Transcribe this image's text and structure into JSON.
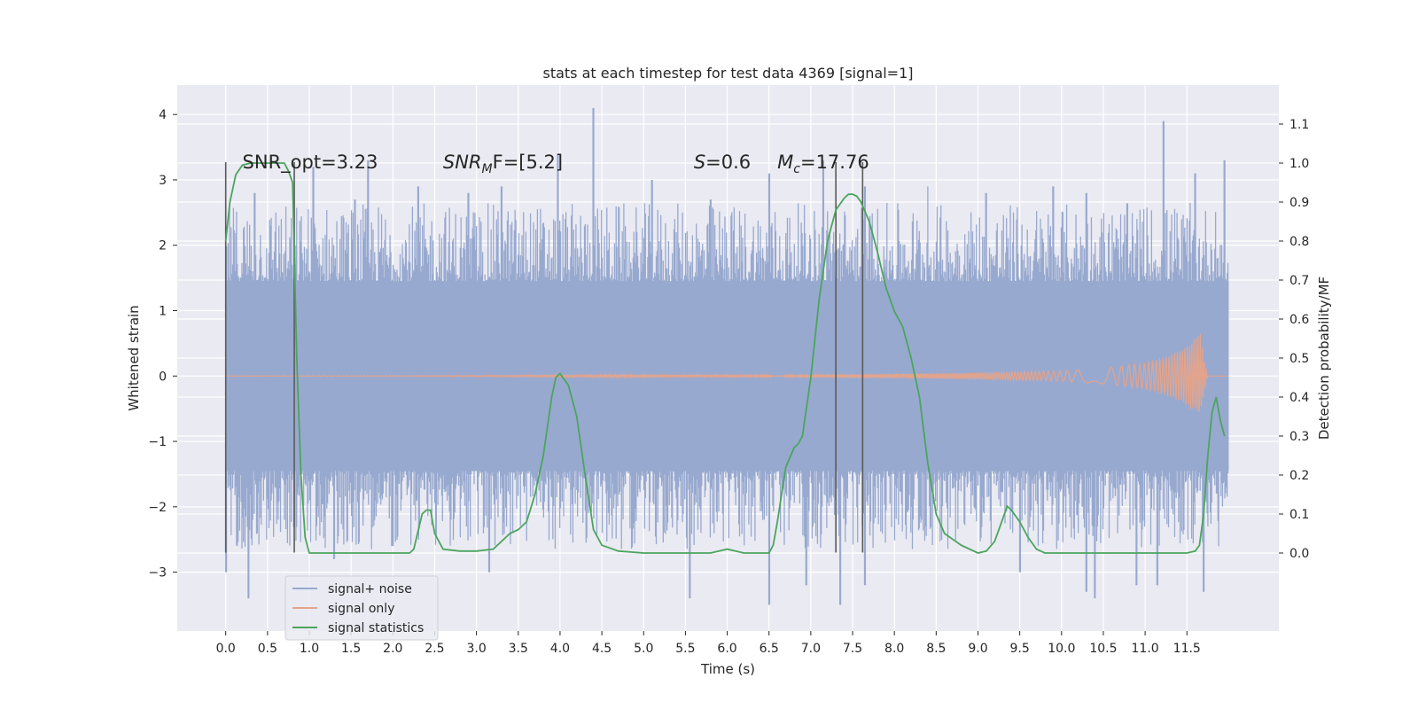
{
  "chart_data": {
    "type": "line",
    "title": "stats at each timestep for test data 4369 [signal=1]",
    "xlabel": "Time (s)",
    "ylabel": "Whitened strain",
    "y2label": "Detection probability/MF",
    "xlim": [
      -0.58,
      12.6
    ],
    "ylim": [
      -3.9,
      4.45
    ],
    "y2lim": [
      -0.2,
      1.2
    ],
    "xticks": [
      0.0,
      0.5,
      1.0,
      1.5,
      2.0,
      2.5,
      3.0,
      3.5,
      4.0,
      4.5,
      5.0,
      5.5,
      6.0,
      6.5,
      7.0,
      7.5,
      8.0,
      8.5,
      9.0,
      9.5,
      10.0,
      10.5,
      11.0,
      11.5
    ],
    "xtick_labels": [
      "0.0",
      "0.5",
      "1.0",
      "1.5",
      "2.0",
      "2.5",
      "3.0",
      "3.5",
      "4.0",
      "4.5",
      "5.0",
      "5.5",
      "6.0",
      "6.5",
      "7.0",
      "7.5",
      "8.0",
      "8.5",
      "9.0",
      "9.5",
      "10.0",
      "10.5",
      "11.0",
      "11.5"
    ],
    "yticks": [
      -3,
      -2,
      -1,
      0,
      1,
      2,
      3,
      4
    ],
    "ytick_labels": [
      "−3",
      "−2",
      "−1",
      "0",
      "1",
      "2",
      "3",
      "4"
    ],
    "y2ticks": [
      0.0,
      0.1,
      0.2,
      0.3,
      0.4,
      0.5,
      0.6,
      0.7,
      0.8,
      0.9,
      1.0,
      1.1
    ],
    "y2tick_labels": [
      "0.0",
      "0.1",
      "0.2",
      "0.3",
      "0.4",
      "0.5",
      "0.6",
      "0.7",
      "0.8",
      "0.9",
      "1.0",
      "1.1"
    ],
    "grid": true,
    "legend_position": "lower left",
    "colors": {
      "background": "#eaeaf2",
      "grid": "#ffffff",
      "noise": "#98a9cf",
      "signal": "#e2a48d",
      "stat": "#4ba55e",
      "marker": "#5a5a5a",
      "text": "#262626"
    },
    "series": [
      {
        "name": "signal+ noise",
        "axis": "left",
        "duration": 12.0,
        "envelope": [
          0,
          1.45,
          -1.45
        ],
        "noise_spread": 2.6,
        "peaks": [
          [
            0.35,
            2.8
          ],
          [
            0.6,
            2.5
          ],
          [
            1.05,
            3.2
          ],
          [
            1.55,
            2.7
          ],
          [
            1.7,
            3.3
          ],
          [
            2.3,
            2.9
          ],
          [
            2.9,
            2.8
          ],
          [
            3.3,
            2.9
          ],
          [
            3.97,
            3.4
          ],
          [
            4.4,
            4.1
          ],
          [
            5.1,
            3.0
          ],
          [
            5.8,
            2.7
          ],
          [
            6.5,
            3.1
          ],
          [
            7.15,
            3.3
          ],
          [
            7.65,
            2.9
          ],
          [
            8.4,
            2.9
          ],
          [
            9.1,
            2.8
          ],
          [
            9.9,
            2.9
          ],
          [
            10.3,
            2.8
          ],
          [
            11.22,
            3.9
          ],
          [
            11.6,
            3.1
          ],
          [
            11.95,
            3.3
          ]
        ],
        "troughs": [
          [
            0.0,
            -3.0
          ],
          [
            0.27,
            -3.4
          ],
          [
            1.3,
            -2.8
          ],
          [
            2.0,
            -2.6
          ],
          [
            3.15,
            -3.0
          ],
          [
            5.55,
            -3.4
          ],
          [
            6.5,
            -3.5
          ],
          [
            6.95,
            -3.2
          ],
          [
            7.35,
            -3.5
          ],
          [
            7.65,
            -3.2
          ],
          [
            9.5,
            -3.0
          ],
          [
            10.3,
            -3.3
          ],
          [
            10.4,
            -3.4
          ],
          [
            10.9,
            -3.2
          ],
          [
            11.15,
            -3.2
          ],
          [
            11.7,
            -3.3
          ]
        ]
      },
      {
        "name": "signal only",
        "axis": "left",
        "x": [
          0.0,
          8.0,
          9.0,
          10.0,
          10.5,
          11.0,
          11.3,
          11.5,
          11.62,
          11.66,
          11.7,
          11.75,
          12.0
        ],
        "amplitude": [
          0.0,
          0.03,
          0.05,
          0.08,
          0.12,
          0.2,
          0.32,
          0.45,
          0.6,
          0.65,
          0.3,
          0.0,
          0.0
        ]
      },
      {
        "name": "signal statistics",
        "axis": "right",
        "x": [
          0.0,
          0.05,
          0.12,
          0.2,
          0.3,
          0.5,
          0.7,
          0.75,
          0.8,
          0.85,
          0.9,
          0.95,
          1.0,
          1.2,
          1.5,
          2.0,
          2.2,
          2.25,
          2.35,
          2.4,
          2.45,
          2.5,
          2.6,
          2.8,
          3.0,
          3.2,
          3.3,
          3.4,
          3.5,
          3.6,
          3.7,
          3.8,
          3.9,
          3.95,
          4.0,
          4.1,
          4.2,
          4.3,
          4.4,
          4.5,
          4.7,
          5.0,
          5.5,
          5.8,
          6.0,
          6.2,
          6.5,
          6.55,
          6.6,
          6.7,
          6.8,
          6.85,
          6.9,
          7.0,
          7.1,
          7.2,
          7.3,
          7.4,
          7.45,
          7.5,
          7.55,
          7.6,
          7.7,
          7.8,
          7.9,
          8.0,
          8.1,
          8.2,
          8.3,
          8.4,
          8.5,
          8.6,
          8.8,
          9.0,
          9.1,
          9.2,
          9.3,
          9.35,
          9.4,
          9.5,
          9.6,
          9.7,
          9.8,
          10.0,
          10.5,
          11.0,
          11.5,
          11.6,
          11.65,
          11.7,
          11.75,
          11.8,
          11.85,
          11.9,
          11.95
        ],
        "values": [
          0.8,
          0.9,
          0.97,
          0.995,
          1.0,
          1.0,
          1.0,
          0.98,
          0.95,
          0.5,
          0.2,
          0.04,
          0.0,
          0.0,
          0.0,
          0.0,
          0.0,
          0.01,
          0.1,
          0.11,
          0.11,
          0.05,
          0.01,
          0.005,
          0.005,
          0.01,
          0.03,
          0.05,
          0.06,
          0.08,
          0.15,
          0.25,
          0.4,
          0.45,
          0.46,
          0.43,
          0.35,
          0.2,
          0.06,
          0.02,
          0.005,
          0.0,
          0.0,
          0.0,
          0.01,
          0.0,
          0.0,
          0.02,
          0.08,
          0.22,
          0.27,
          0.28,
          0.3,
          0.45,
          0.65,
          0.8,
          0.88,
          0.91,
          0.92,
          0.92,
          0.915,
          0.9,
          0.85,
          0.77,
          0.68,
          0.62,
          0.58,
          0.5,
          0.4,
          0.23,
          0.1,
          0.05,
          0.02,
          0.0,
          0.005,
          0.03,
          0.09,
          0.12,
          0.11,
          0.08,
          0.04,
          0.01,
          0.0,
          0.0,
          0.0,
          0.0,
          0.0,
          0.005,
          0.02,
          0.1,
          0.25,
          0.36,
          0.4,
          0.34,
          0.3
        ]
      }
    ],
    "vlines": [
      0.0,
      0.82,
      7.3,
      7.62
    ],
    "vline_range": [
      -2.7,
      3.27
    ],
    "annotations": [
      {
        "x": 0.2,
        "y": 3.27,
        "text": "SNR_opt=3.23"
      },
      {
        "x": 2.6,
        "y": 3.27,
        "text": "SNR",
        "sub": "M",
        "rest": "F=[5.2]",
        "italic": true
      },
      {
        "x": 5.6,
        "y": 3.27,
        "text": "S",
        "rest": "=0.6",
        "italic": true
      },
      {
        "x": 6.6,
        "y": 3.27,
        "text": "M",
        "sub": "c",
        "rest": "=17.76",
        "italic": true
      }
    ],
    "legend": [
      {
        "label": "signal+ noise",
        "color": "#98a9cf"
      },
      {
        "label": "signal only",
        "color": "#e2a48d"
      },
      {
        "label": "signal statistics",
        "color": "#4ba55e"
      }
    ]
  }
}
